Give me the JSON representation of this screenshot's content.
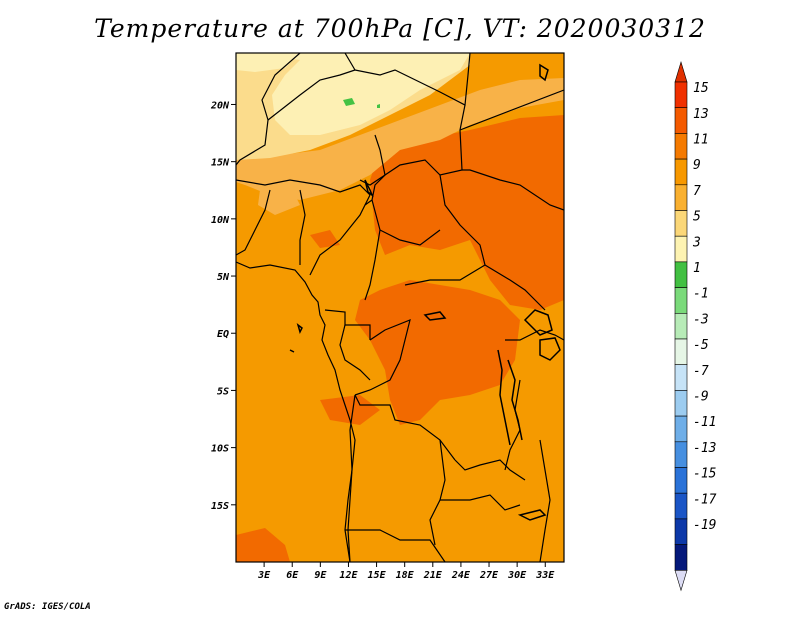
{
  "title": "Temperature at 700hPa [C], VT: 2020030312",
  "credit": "GrADS: IGES/COLA",
  "map": {
    "variable": "Temperature at 700hPa",
    "units": "C",
    "valid_time": "2020030312",
    "lon_range": [
      0,
      35
    ],
    "lat_range": [
      -20,
      24.5
    ],
    "x_ticks": [
      {
        "value": 3,
        "label": "3E"
      },
      {
        "value": 6,
        "label": "6E"
      },
      {
        "value": 9,
        "label": "9E"
      },
      {
        "value": 12,
        "label": "12E"
      },
      {
        "value": 15,
        "label": "15E"
      },
      {
        "value": 18,
        "label": "18E"
      },
      {
        "value": 21,
        "label": "21E"
      },
      {
        "value": 24,
        "label": "24E"
      },
      {
        "value": 27,
        "label": "27E"
      },
      {
        "value": 30,
        "label": "30E"
      },
      {
        "value": 33,
        "label": "33E"
      }
    ],
    "y_ticks": [
      {
        "value": 20,
        "label": "20N"
      },
      {
        "value": 15,
        "label": "15N"
      },
      {
        "value": 10,
        "label": "10N"
      },
      {
        "value": 5,
        "label": "5N"
      },
      {
        "value": 0,
        "label": "EQ"
      },
      {
        "value": -5,
        "label": "5S"
      },
      {
        "value": -10,
        "label": "10S"
      },
      {
        "value": -15,
        "label": "15S"
      }
    ]
  },
  "colorbar": {
    "levels": [
      "15",
      "13",
      "11",
      "9",
      "7",
      "5",
      "3",
      "1",
      "-1",
      "-3",
      "-5",
      "-7",
      "-9",
      "-11",
      "-13",
      "-15",
      "-17",
      "-19"
    ],
    "colors": [
      "#f03000",
      "#f45a00",
      "#f57a00",
      "#f79800",
      "#f9b030",
      "#fbd778",
      "#fdf3b2",
      "#42c042",
      "#7ada7a",
      "#b7ebb7",
      "#e6f6e6",
      "#c6e3f7",
      "#9cccf0",
      "#6eaee8",
      "#468fe0",
      "#2a72d8",
      "#1a55c6",
      "#0c38a8",
      "#04187a"
    ],
    "top_color": "#e03000",
    "bottom_color": "#dcdcf4"
  },
  "field": {
    "colors": {
      "deep_orange": "#f26a00",
      "orange": "#f59a00",
      "light_orange": "#f8b248",
      "pale_yellow": "#fbdc8c",
      "very_pale": "#fdf0b4",
      "green": "#44c244"
    }
  }
}
